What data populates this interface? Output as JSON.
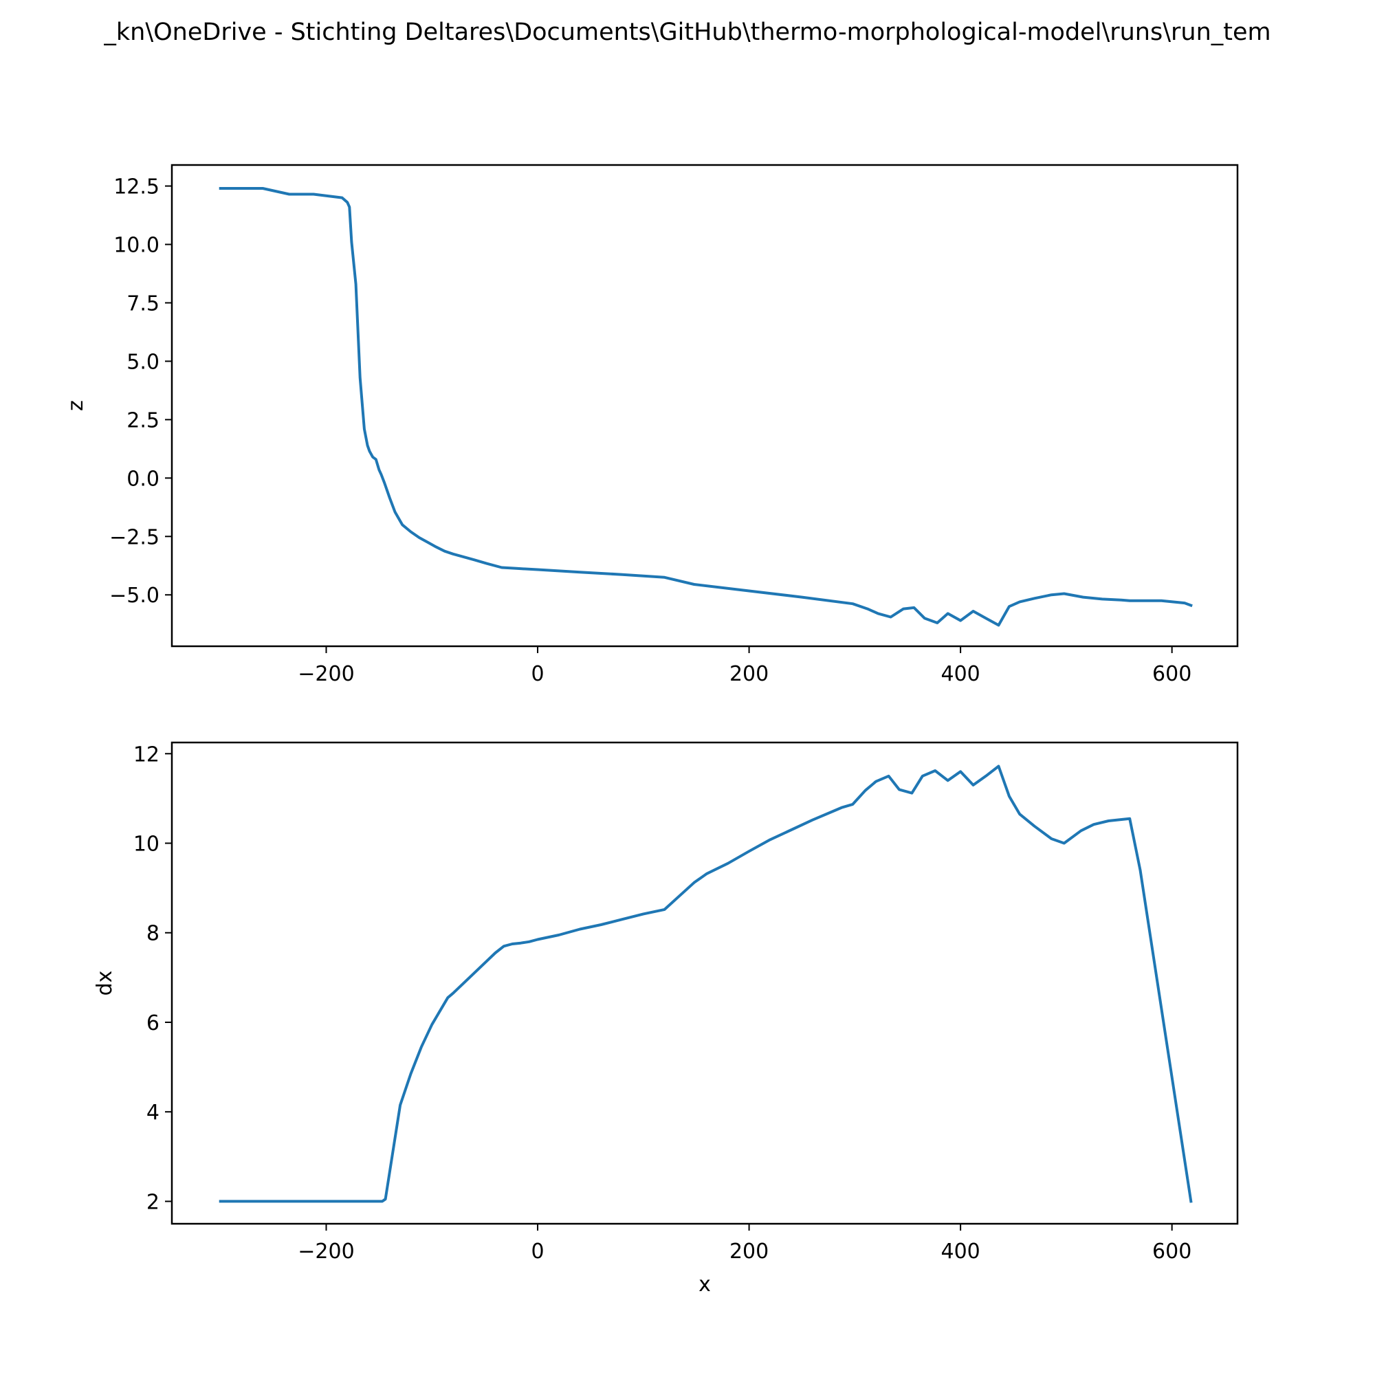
{
  "figure": {
    "suptitle": "_kn\\OneDrive - Stichting Deltares\\Documents\\GitHub\\thermo-morphological-model\\runs\\run_tem"
  },
  "colors": {
    "line": "#1f77b4"
  },
  "chart_data": [
    {
      "type": "line",
      "title": "",
      "xlabel": "",
      "ylabel": "z",
      "xlim": [
        -346,
        662
      ],
      "ylim": [
        -7.2,
        13.4
      ],
      "xticks": [
        -200,
        0,
        200,
        400,
        600
      ],
      "xtick_labels": [
        "−200",
        "0",
        "200",
        "400",
        "600"
      ],
      "yticks": [
        -5.0,
        -2.5,
        0.0,
        2.5,
        5.0,
        7.5,
        10.0,
        12.5
      ],
      "ytick_labels": [
        "−5.0",
        "−2.5",
        "0.0",
        "2.5",
        "5.0",
        "7.5",
        "10.0",
        "12.5"
      ],
      "grid": false,
      "series": [
        {
          "x": [
            -300,
            -260,
            -235,
            -212,
            -185,
            -180,
            -178,
            -176,
            -172,
            -168,
            -164,
            -161,
            -159,
            -156,
            -153,
            -150,
            -148,
            -145,
            -140,
            -135,
            -128,
            -120,
            -112,
            -104,
            -96,
            -88,
            -80,
            -72,
            -60,
            -48,
            -34,
            -20,
            0,
            40,
            80,
            100,
            120,
            148,
            200,
            250,
            298,
            312,
            322,
            334,
            346,
            356,
            366,
            378,
            388,
            400,
            412,
            424,
            436,
            446,
            456,
            470,
            486,
            498,
            516,
            534,
            552,
            560,
            578,
            590,
            612,
            618
          ],
          "y": [
            12.4,
            12.4,
            12.15,
            12.15,
            12.0,
            11.8,
            11.6,
            10.1,
            8.3,
            4.3,
            2.1,
            1.4,
            1.15,
            0.9,
            0.8,
            0.35,
            0.15,
            -0.2,
            -0.85,
            -1.45,
            -2.0,
            -2.3,
            -2.55,
            -2.75,
            -2.95,
            -3.13,
            -3.25,
            -3.35,
            -3.5,
            -3.66,
            -3.83,
            -3.87,
            -3.92,
            -4.03,
            -4.13,
            -4.19,
            -4.25,
            -4.55,
            -4.83,
            -5.1,
            -5.38,
            -5.6,
            -5.8,
            -5.95,
            -5.6,
            -5.55,
            -6.0,
            -6.2,
            -5.8,
            -6.1,
            -5.7,
            -6.0,
            -6.3,
            -5.5,
            -5.3,
            -5.15,
            -5.0,
            -4.95,
            -5.1,
            -5.18,
            -5.22,
            -5.25,
            -5.25,
            -5.25,
            -5.35,
            -5.45
          ]
        }
      ]
    },
    {
      "type": "line",
      "title": "",
      "xlabel": "x",
      "ylabel": "dx",
      "xlim": [
        -346,
        662
      ],
      "ylim": [
        1.5,
        12.25
      ],
      "xticks": [
        -200,
        0,
        200,
        400,
        600
      ],
      "xtick_labels": [
        "−200",
        "0",
        "200",
        "400",
        "600"
      ],
      "yticks": [
        2,
        4,
        6,
        8,
        10,
        12
      ],
      "ytick_labels": [
        "2",
        "4",
        "6",
        "8",
        "10",
        "12"
      ],
      "grid": false,
      "series": [
        {
          "x": [
            -300,
            -262,
            -220,
            -180,
            -147,
            -144,
            -130,
            -120,
            -110,
            -100,
            -85,
            -80,
            -60,
            -40,
            -32,
            -24,
            -16,
            -8,
            0,
            20,
            40,
            60,
            80,
            100,
            120,
            134,
            148,
            160,
            180,
            200,
            220,
            240,
            260,
            280,
            288,
            298,
            310,
            320,
            332,
            342,
            354,
            364,
            376,
            388,
            400,
            412,
            424,
            436,
            446,
            456,
            470,
            486,
            498,
            514,
            526,
            540,
            560,
            570,
            618
          ],
          "y": [
            2.0,
            2.0,
            2.0,
            2.0,
            2.0,
            2.05,
            4.15,
            4.85,
            5.45,
            5.95,
            6.55,
            6.65,
            7.1,
            7.55,
            7.7,
            7.75,
            7.77,
            7.8,
            7.85,
            7.95,
            8.08,
            8.18,
            8.3,
            8.42,
            8.52,
            8.82,
            9.12,
            9.32,
            9.55,
            9.82,
            10.08,
            10.3,
            10.52,
            10.72,
            10.8,
            10.87,
            11.18,
            11.38,
            11.5,
            11.2,
            11.12,
            11.5,
            11.62,
            11.4,
            11.6,
            11.3,
            11.5,
            11.72,
            11.05,
            10.65,
            10.38,
            10.1,
            10.0,
            10.28,
            10.42,
            10.5,
            10.55,
            9.4,
            2.0
          ]
        }
      ]
    }
  ]
}
